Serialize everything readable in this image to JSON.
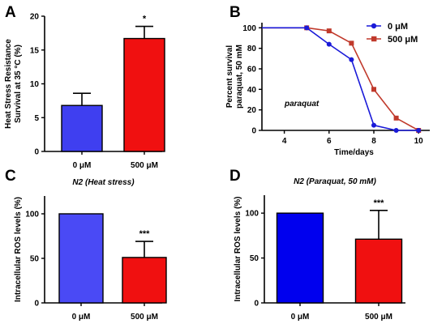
{
  "panels": {
    "A": {
      "letter": "A"
    },
    "B": {
      "letter": "B"
    },
    "C": {
      "letter": "C"
    },
    "D": {
      "letter": "D"
    }
  },
  "chart_data": [
    {
      "id": "A",
      "type": "bar",
      "title": "",
      "ylabel_lines": [
        "Heat Stress Resistance",
        "Survival at 35 °C  (%)"
      ],
      "categories": [
        "0 μM",
        "500 μM"
      ],
      "values": [
        6.8,
        16.7
      ],
      "errors": [
        1.8,
        1.8
      ],
      "significance": [
        "",
        "*"
      ],
      "bar_colors": [
        "#3f3ff0",
        "#f01010"
      ],
      "ylim": [
        0,
        20
      ],
      "yticks": [
        0,
        5,
        10,
        15,
        20
      ],
      "grid": false
    },
    {
      "id": "B",
      "type": "line",
      "title": "",
      "ylabel_lines": [
        "Percent survival",
        "paraquat, 50 mM"
      ],
      "xlabel": "Time/days",
      "annotation": "paraquat",
      "xlim": [
        3,
        10.5
      ],
      "ylim": [
        0,
        105
      ],
      "xticks": [
        4,
        6,
        8,
        10
      ],
      "yticks": [
        0,
        20,
        40,
        60,
        80,
        100
      ],
      "legend_position": "top-right",
      "series": [
        {
          "name": "0 μM",
          "color": "#1a1ad8",
          "marker": "circle",
          "x": [
            3,
            5,
            6,
            7,
            8,
            9,
            10
          ],
          "y": [
            100,
            100,
            84,
            69,
            5,
            0,
            0
          ]
        },
        {
          "name": "500 μM",
          "color": "#c0392b",
          "marker": "square",
          "x": [
            3,
            5,
            6,
            7,
            8,
            9,
            10
          ],
          "y": [
            100,
            100,
            97,
            85,
            40,
            12,
            0
          ]
        }
      ],
      "grid": false
    },
    {
      "id": "C",
      "type": "bar",
      "title": "N2 (Heat stress)",
      "ylabel_lines": [
        "Intracellular ROS levels (%)"
      ],
      "categories": [
        "0 μM",
        "500 μM"
      ],
      "values": [
        100,
        51
      ],
      "errors": [
        0,
        18
      ],
      "significance": [
        "",
        "***"
      ],
      "bar_colors": [
        "#4a4af5",
        "#f01010"
      ],
      "ylim": [
        0,
        120
      ],
      "yticks": [
        0,
        50,
        100
      ],
      "grid": false
    },
    {
      "id": "D",
      "type": "bar",
      "title": "N2 (Paraquat, 50 mM)",
      "ylabel_lines": [
        "Intracellular ROS levels (%)"
      ],
      "categories": [
        "0 μM",
        "500 μM"
      ],
      "values": [
        100,
        71
      ],
      "errors": [
        0,
        32
      ],
      "significance": [
        "",
        "***"
      ],
      "bar_colors": [
        "#0000ee",
        "#f01010"
      ],
      "ylim": [
        0,
        120
      ],
      "yticks": [
        0,
        50,
        100
      ],
      "grid": false
    }
  ]
}
